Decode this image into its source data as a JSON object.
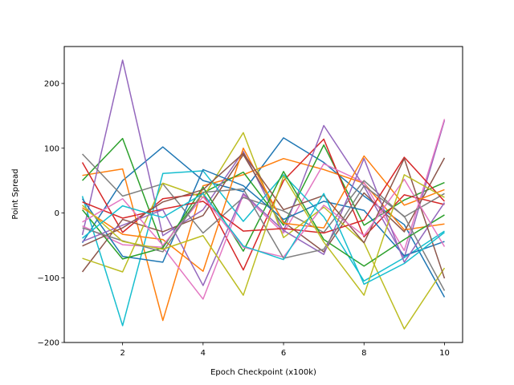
{
  "chart_data": {
    "type": "line",
    "title": "",
    "xlabel": "Epoch Checkpoint (x100k)",
    "ylabel": "Point Spread",
    "xlim": [
      0.55,
      10.45
    ],
    "ylim": [
      -200,
      257
    ],
    "xticks": [
      2,
      4,
      6,
      8,
      10
    ],
    "yticks": [
      -200,
      -100,
      0,
      100,
      200
    ],
    "grid": false,
    "legend": "none",
    "x": [
      1,
      2,
      3,
      4,
      5,
      6,
      7,
      8,
      9,
      10
    ],
    "series": [
      {
        "color": "#1f77b4",
        "values": [
          -46,
          50,
          102,
          50,
          33,
          116,
          78,
          26,
          -18,
          -130
        ]
      },
      {
        "color": "#ff7f0e",
        "values": [
          58,
          68,
          -166,
          42,
          59,
          84,
          67,
          46,
          -26,
          -17
        ]
      },
      {
        "color": "#2ca02c",
        "values": [
          50,
          115,
          -52,
          31,
          63,
          -19,
          105,
          -19,
          20,
          47
        ]
      },
      {
        "color": "#d62728",
        "values": [
          78,
          -30,
          22,
          30,
          -88,
          50,
          114,
          -37,
          28,
          13
        ]
      },
      {
        "color": "#9467bd",
        "values": [
          -34,
          236,
          -35,
          5,
          95,
          -28,
          135,
          41,
          -69,
          143
        ]
      },
      {
        "color": "#8c564b",
        "values": [
          -91,
          -10,
          -29,
          -4,
          90,
          -14,
          -60,
          31,
          -29,
          85
        ]
      },
      {
        "color": "#e377c2",
        "values": [
          -20,
          -49,
          -53,
          -133,
          28,
          -31,
          76,
          47,
          -58,
          145
        ]
      },
      {
        "color": "#7f7f7f",
        "values": [
          91,
          26,
          45,
          -31,
          24,
          3,
          -30,
          50,
          -6,
          30
        ]
      },
      {
        "color": "#bcbd22",
        "values": [
          -70,
          -91,
          46,
          24,
          124,
          -38,
          9,
          -46,
          -179,
          -85
        ]
      },
      {
        "color": "#17becf",
        "values": [
          26,
          -174,
          61,
          65,
          -13,
          59,
          -6,
          -105,
          -69,
          -28
        ]
      },
      {
        "color": "#1f77b4",
        "values": [
          22,
          -67,
          -76,
          67,
          42,
          -10,
          18,
          4,
          -66,
          -44
        ]
      },
      {
        "color": "#ff7f0e",
        "values": [
          8,
          -33,
          -41,
          -90,
          100,
          -16,
          -23,
          88,
          12,
          36
        ]
      },
      {
        "color": "#2ca02c",
        "values": [
          5,
          -71,
          -54,
          40,
          -59,
          64,
          -41,
          -82,
          -41,
          -3
        ]
      },
      {
        "color": "#d62728",
        "values": [
          17,
          -8,
          6,
          18,
          -28,
          -24,
          -31,
          -11,
          86,
          18
        ]
      },
      {
        "color": "#9467bd",
        "values": [
          -44,
          -19,
          5,
          -112,
          30,
          -27,
          -64,
          84,
          -76,
          16
        ]
      },
      {
        "color": "#8c564b",
        "values": [
          -51,
          -23,
          17,
          36,
          92,
          5,
          27,
          -46,
          84,
          -101
        ]
      },
      {
        "color": "#e377c2",
        "values": [
          -14,
          22,
          -50,
          25,
          -53,
          -68,
          12,
          -35,
          52,
          -52
        ]
      },
      {
        "color": "#7f7f7f",
        "values": [
          -23,
          -43,
          -60,
          32,
          37,
          -70,
          -56,
          42,
          -5,
          -120
        ]
      },
      {
        "color": "#bcbd22",
        "values": [
          12,
          -44,
          -56,
          -35,
          -127,
          57,
          -45,
          -127,
          59,
          24
        ]
      },
      {
        "color": "#17becf",
        "values": [
          -39,
          11,
          -7,
          30,
          -51,
          -72,
          30,
          -110,
          -78,
          -30
        ]
      }
    ]
  }
}
